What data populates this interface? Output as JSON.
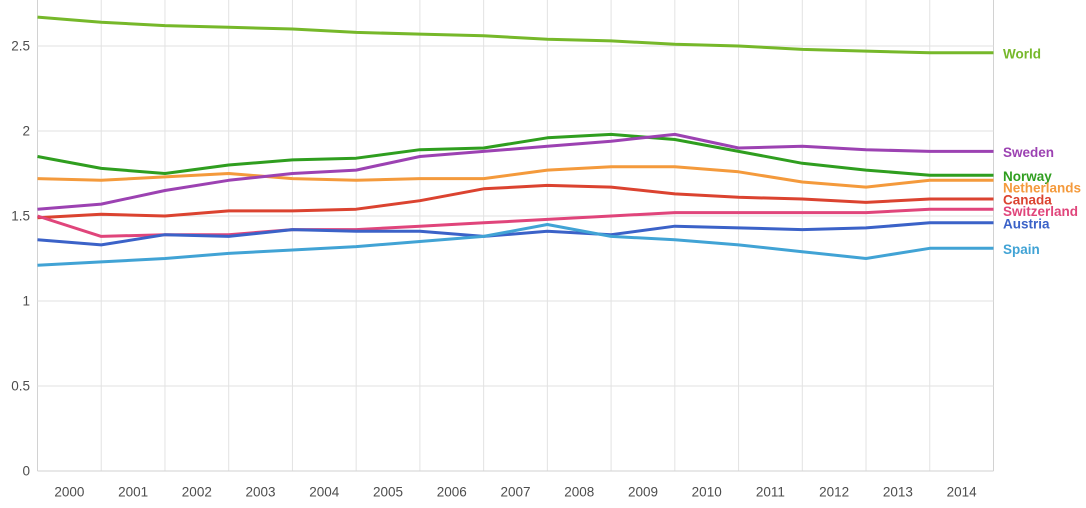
{
  "chart_data": {
    "type": "line",
    "title": "",
    "xlabel": "",
    "ylabel": "",
    "x": [
      2000,
      2001,
      2002,
      2003,
      2004,
      2005,
      2006,
      2007,
      2008,
      2009,
      2010,
      2011,
      2012,
      2013,
      2014
    ],
    "xtick_labels": [
      "2000",
      "2001",
      "2002",
      "2003",
      "2004",
      "2005",
      "2006",
      "2007",
      "2008",
      "2009",
      "2010",
      "2011",
      "2012",
      "2013",
      "2014"
    ],
    "ytick_labels": [
      "0",
      "0.5",
      "1",
      "1.5",
      "2",
      "2.5"
    ],
    "ytick_values": [
      0,
      0.5,
      1,
      1.5,
      2,
      2.5
    ],
    "ylim": [
      0,
      2.77
    ],
    "grid": true,
    "legend_position": "right",
    "colors": {
      "gridline": "#e2e2e2",
      "plot_border": "#d2d2d2",
      "axis_text": "#4d4d4d",
      "background": "#ffffff"
    },
    "series": [
      {
        "name": "World",
        "color": "#76b82a",
        "values": [
          2.67,
          2.64,
          2.62,
          2.61,
          2.6,
          2.58,
          2.57,
          2.56,
          2.54,
          2.53,
          2.51,
          2.5,
          2.48,
          2.47,
          2.46
        ]
      },
      {
        "name": "Norway",
        "color": "#2f9e1f",
        "values": [
          1.85,
          1.78,
          1.75,
          1.8,
          1.83,
          1.84,
          1.89,
          1.9,
          1.96,
          1.98,
          1.95,
          1.88,
          1.81,
          1.77,
          1.74
        ]
      },
      {
        "name": "Netherlands",
        "color": "#f49a3c",
        "values": [
          1.72,
          1.71,
          1.73,
          1.75,
          1.72,
          1.71,
          1.72,
          1.72,
          1.77,
          1.79,
          1.79,
          1.76,
          1.7,
          1.67,
          1.71
        ]
      },
      {
        "name": "Canada",
        "color": "#db4330",
        "values": [
          1.49,
          1.51,
          1.5,
          1.53,
          1.53,
          1.54,
          1.59,
          1.66,
          1.68,
          1.67,
          1.63,
          1.61,
          1.6,
          1.58,
          1.6
        ]
      },
      {
        "name": "Switzerland",
        "color": "#e0457b",
        "values": [
          1.5,
          1.38,
          1.39,
          1.39,
          1.42,
          1.42,
          1.44,
          1.46,
          1.48,
          1.5,
          1.52,
          1.52,
          1.52,
          1.52,
          1.54
        ]
      },
      {
        "name": "Austria",
        "color": "#3b62c8",
        "values": [
          1.36,
          1.33,
          1.39,
          1.38,
          1.42,
          1.41,
          1.41,
          1.38,
          1.41,
          1.39,
          1.44,
          1.43,
          1.42,
          1.43,
          1.46
        ]
      },
      {
        "name": "Spain",
        "color": "#41a3d5",
        "values": [
          1.21,
          1.23,
          1.25,
          1.28,
          1.3,
          1.32,
          1.35,
          1.38,
          1.45,
          1.38,
          1.36,
          1.33,
          1.29,
          1.25,
          1.31
        ]
      },
      {
        "name": "Sweden",
        "color": "#9c42b2",
        "values": [
          1.54,
          1.57,
          1.65,
          1.71,
          1.75,
          1.77,
          1.85,
          1.88,
          1.91,
          1.94,
          1.98,
          1.9,
          1.91,
          1.89,
          1.88
        ]
      }
    ],
    "legend_order": [
      "World",
      "Sweden",
      "Norway",
      "Netherlands",
      "Canada",
      "Switzerland",
      "Austria",
      "Spain"
    ]
  }
}
